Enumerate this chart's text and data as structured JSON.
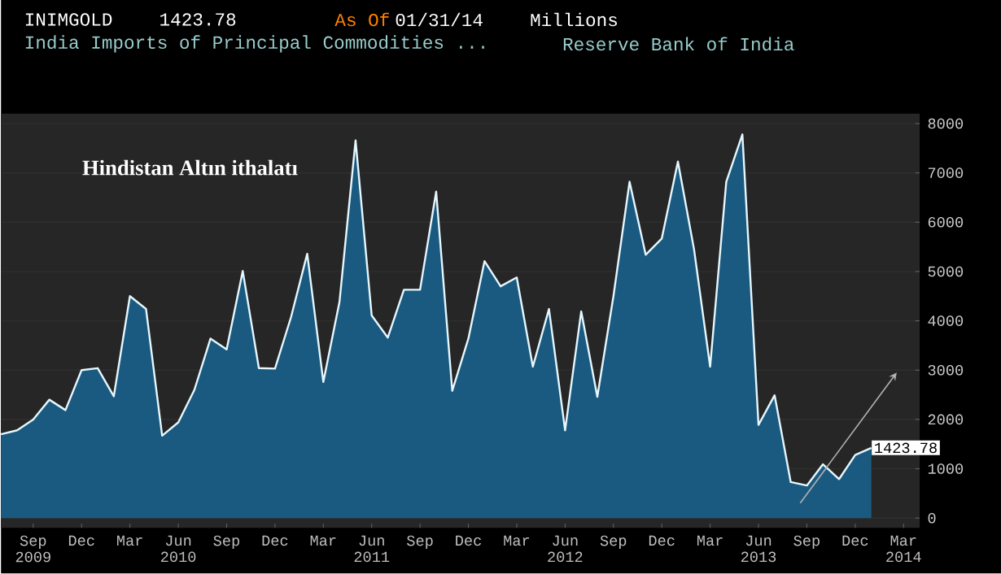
{
  "chart_data": {
    "type": "area",
    "title": "Hindistan Altın ithalatı",
    "annotations": [
      "INIMGOLD",
      "1423.78",
      "As Of",
      "01/31/14",
      "Millions",
      "India Imports of Principal Commodities ...",
      "Reserve Bank of India"
    ],
    "x": [
      "2009-07",
      "2009-08",
      "2009-09",
      "2009-10",
      "2009-11",
      "2009-12",
      "2010-01",
      "2010-02",
      "2010-03",
      "2010-04",
      "2010-05",
      "2010-06",
      "2010-07",
      "2010-08",
      "2010-09",
      "2010-10",
      "2010-11",
      "2010-12",
      "2011-01",
      "2011-02",
      "2011-03",
      "2011-04",
      "2011-05",
      "2011-06",
      "2011-07",
      "2011-08",
      "2011-09",
      "2011-10",
      "2011-11",
      "2011-12",
      "2012-01",
      "2012-02",
      "2012-03",
      "2012-04",
      "2012-05",
      "2012-06",
      "2012-07",
      "2012-08",
      "2012-09",
      "2012-10",
      "2012-11",
      "2012-12",
      "2013-01",
      "2013-02",
      "2013-03",
      "2013-04",
      "2013-05",
      "2013-06",
      "2013-07",
      "2013-08",
      "2013-09",
      "2013-10",
      "2013-11",
      "2013-12",
      "2014-01"
    ],
    "series": [
      {
        "color": "#1b5a80",
        "values": [
          1700,
          1780,
          2000,
          2400,
          2190,
          3000,
          3040,
          2470,
          4500,
          4240,
          1670,
          1940,
          2600,
          3640,
          3420,
          5010,
          3040,
          3030,
          4080,
          5360,
          2760,
          4380,
          7660,
          4110,
          3660,
          4630,
          4630,
          6620,
          2580,
          3640,
          5210,
          4700,
          4880,
          3070,
          4240,
          1780,
          4190,
          2460,
          4500,
          6820,
          5340,
          5670,
          7230,
          5450,
          3070,
          6820,
          7780,
          1890,
          2490,
          730,
          660,
          1090,
          790,
          1280,
          1423.78
        ],
        "value_labels": [
          null,
          null,
          null,
          null,
          null,
          null,
          null,
          null,
          null,
          null,
          null,
          null,
          null,
          null,
          null,
          null,
          null,
          null,
          null,
          null,
          null,
          null,
          null,
          null,
          null,
          null,
          null,
          null,
          null,
          null,
          null,
          null,
          null,
          null,
          null,
          null,
          null,
          null,
          null,
          null,
          null,
          null,
          null,
          null,
          null,
          null,
          null,
          null,
          null,
          null,
          null,
          null,
          null,
          null,
          "1423.78"
        ]
      }
    ],
    "xlim": [
      "2009-07",
      "2014-04"
    ],
    "xticks": [
      {
        "value": "2009-09",
        "label": "Sep 2009"
      },
      {
        "value": "2009-12",
        "label": "Dec"
      },
      {
        "value": "2010-03",
        "label": "Mar"
      },
      {
        "value": "2010-06",
        "label": "Jun 2010"
      },
      {
        "value": "2010-09",
        "label": "Sep"
      },
      {
        "value": "2010-12",
        "label": "Dec"
      },
      {
        "value": "2011-03",
        "label": "Mar"
      },
      {
        "value": "2011-06",
        "label": "Jun 2011"
      },
      {
        "value": "2011-09",
        "label": "Sep"
      },
      {
        "value": "2011-12",
        "label": "Dec"
      },
      {
        "value": "2012-03",
        "label": "Mar"
      },
      {
        "value": "2012-06",
        "label": "Jun 2012"
      },
      {
        "value": "2012-09",
        "label": "Sep"
      },
      {
        "value": "2012-12",
        "label": "Dec"
      },
      {
        "value": "2013-03",
        "label": "Mar"
      },
      {
        "value": "2013-06",
        "label": "Jun 2013"
      },
      {
        "value": "2013-09",
        "label": "Sep"
      },
      {
        "value": "2013-12",
        "label": "Dec"
      },
      {
        "value": "2014-03",
        "label": "Mar 2014"
      }
    ],
    "ylim": [
      -200,
      8200
    ],
    "yticks": [
      0,
      1000,
      2000,
      3000,
      4000,
      5000,
      6000,
      7000,
      8000
    ],
    "grid": "y"
  }
}
